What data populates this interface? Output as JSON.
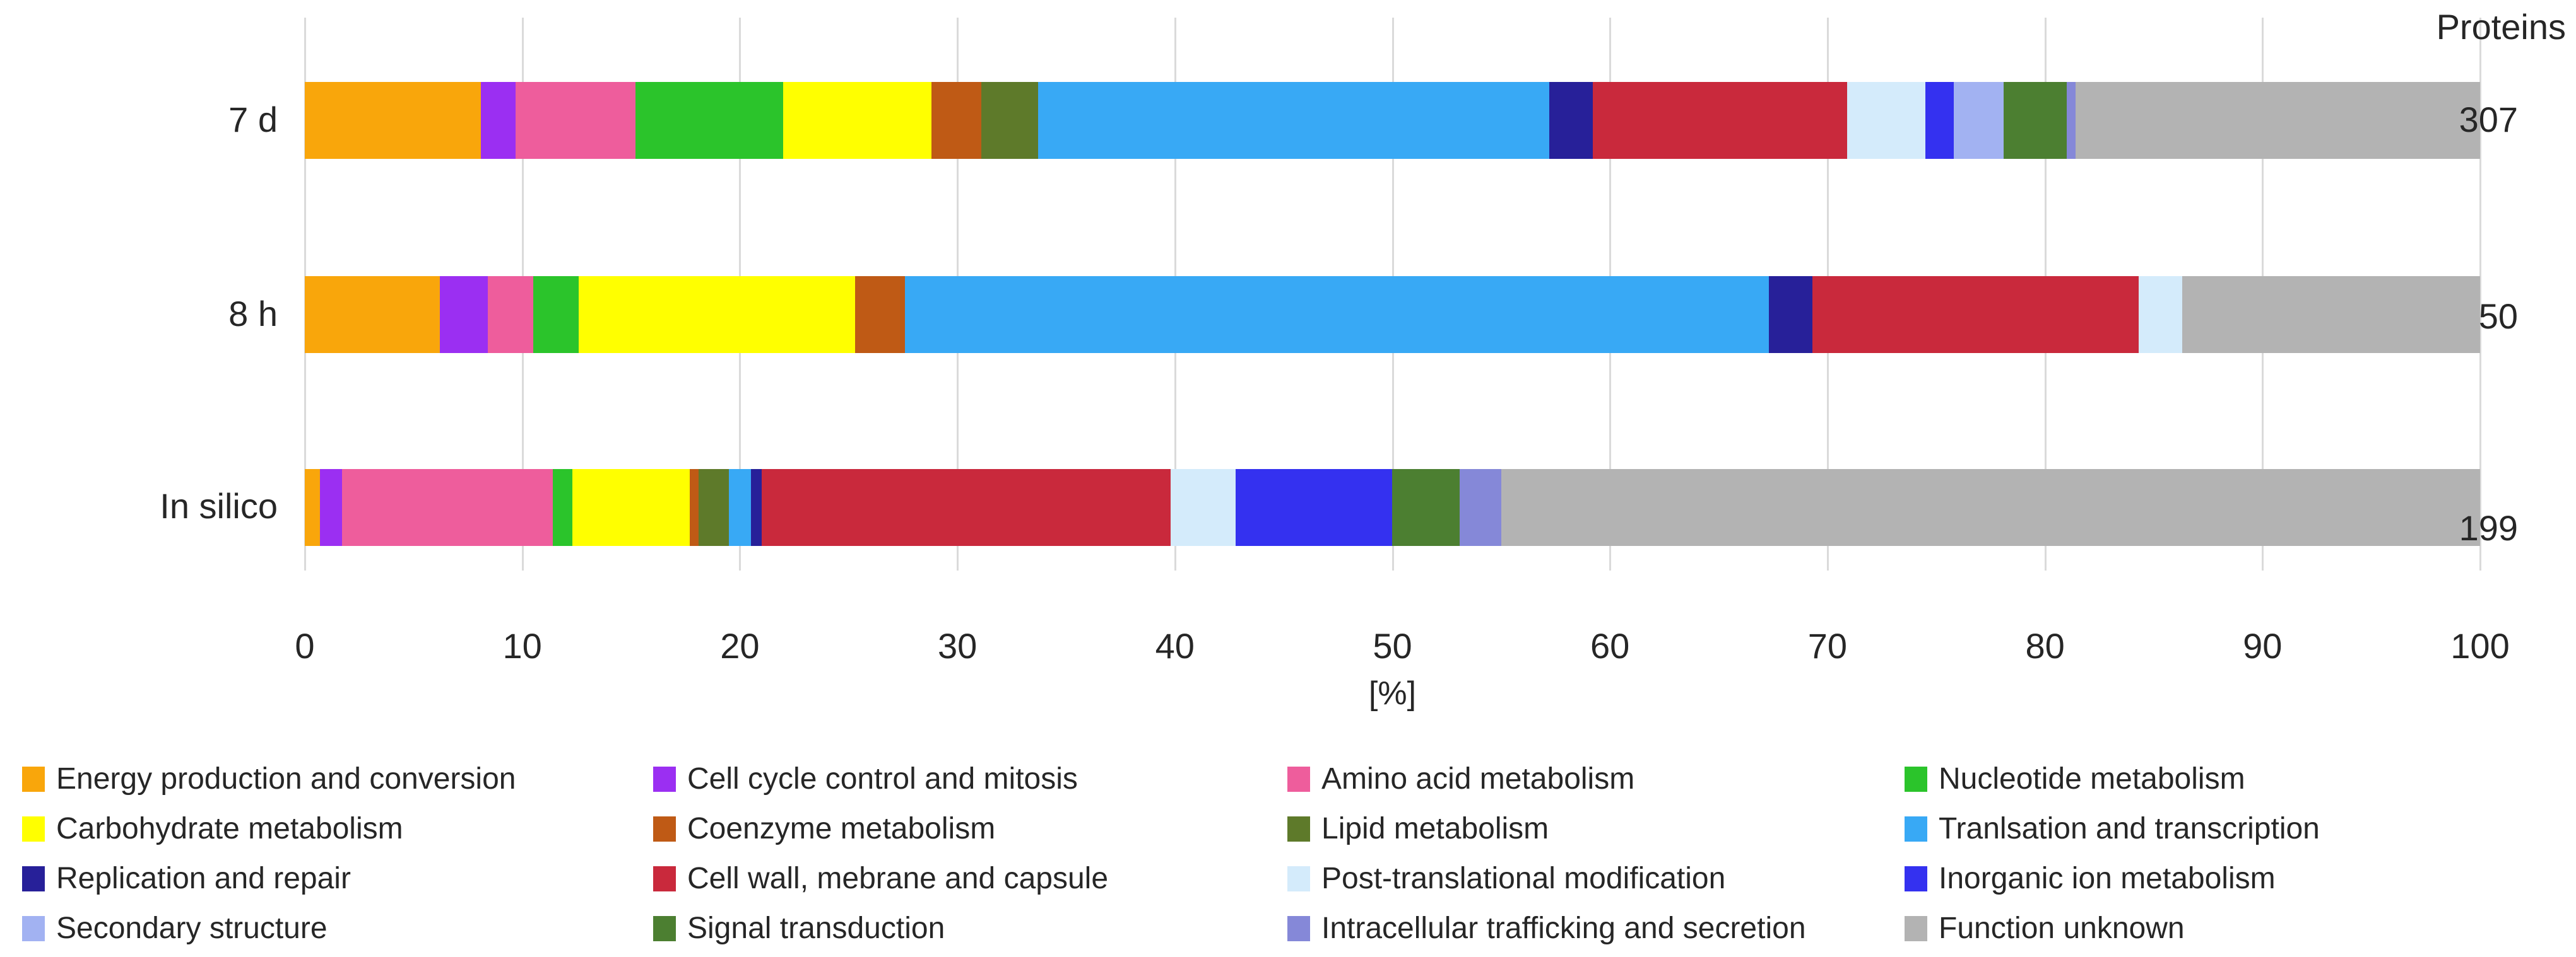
{
  "right_column": {
    "header": "Proteins"
  },
  "x_axis": {
    "label": "[%]",
    "ticks": [
      "0",
      "10",
      "20",
      "30",
      "40",
      "50",
      "60",
      "70",
      "80",
      "90",
      "100"
    ]
  },
  "chart_data": {
    "type": "bar",
    "orientation": "horizontal",
    "stacked": true,
    "unit": "percent",
    "title": "",
    "xlabel": "[%]",
    "xlim": [
      0,
      100
    ],
    "x_ticks": [
      0,
      10,
      20,
      30,
      40,
      50,
      60,
      70,
      80,
      90,
      100
    ],
    "grid": true,
    "legend_position": "bottom",
    "right_value_label": "Proteins",
    "categories": [
      {
        "label": "Energy production and conversion",
        "color": "#F9A60B"
      },
      {
        "label": "Cell cycle control and mitosis",
        "color": "#9B2FF2"
      },
      {
        "label": "Amino acid metabolism",
        "color": "#EE5D9C"
      },
      {
        "label": "Nucleotide metabolism",
        "color": "#2BC42B"
      },
      {
        "label": "Carbohydrate metabolism",
        "color": "#FFFF00"
      },
      {
        "label": "Coenzyme metabolism",
        "color": "#BF5A15"
      },
      {
        "label": "Lipid metabolism",
        "color": "#5E7A2A"
      },
      {
        "label": "Tranlsation and transcription",
        "color": "#38A9F5"
      },
      {
        "label": "Replication and repair",
        "color": "#272099"
      },
      {
        "label": "Cell wall, mebrane and capsule",
        "color": "#C9293C"
      },
      {
        "label": "Post-translational modification",
        "color": "#D4EBFB"
      },
      {
        "label": "Inorganic ion metabolism",
        "color": "#3431F0"
      },
      {
        "label": "Secondary structure",
        "color": "#A2B2F2"
      },
      {
        "label": "Signal transduction",
        "color": "#4C7F31"
      },
      {
        "label": "Intracellular trafficking and secretion",
        "color": "#8588D8"
      },
      {
        "label": "Function unknown",
        "color": "#B3B3B3"
      }
    ],
    "bars": [
      {
        "label": "7 d",
        "proteins": 307,
        "values_pct": [
          8.1,
          1.6,
          5.5,
          6.8,
          6.8,
          2.3,
          2.6,
          23.5,
          2.0,
          11.7,
          3.6,
          1.3,
          2.3,
          2.9,
          0.4,
          18.6
        ]
      },
      {
        "label": "8 h",
        "proteins": 50,
        "values_pct": [
          6.2,
          2.2,
          2.1,
          2.1,
          12.7,
          2.3,
          0,
          39.7,
          2.0,
          15.0,
          2.0,
          0,
          0,
          0,
          0,
          13.7
        ]
      },
      {
        "label": "In silico",
        "proteins": 199,
        "values_pct": [
          0.7,
          1.0,
          9.7,
          0.9,
          5.4,
          0.4,
          1.4,
          1.0,
          0.5,
          18.8,
          3.0,
          7.2,
          0,
          3.1,
          1.9,
          45.0
        ]
      }
    ]
  }
}
